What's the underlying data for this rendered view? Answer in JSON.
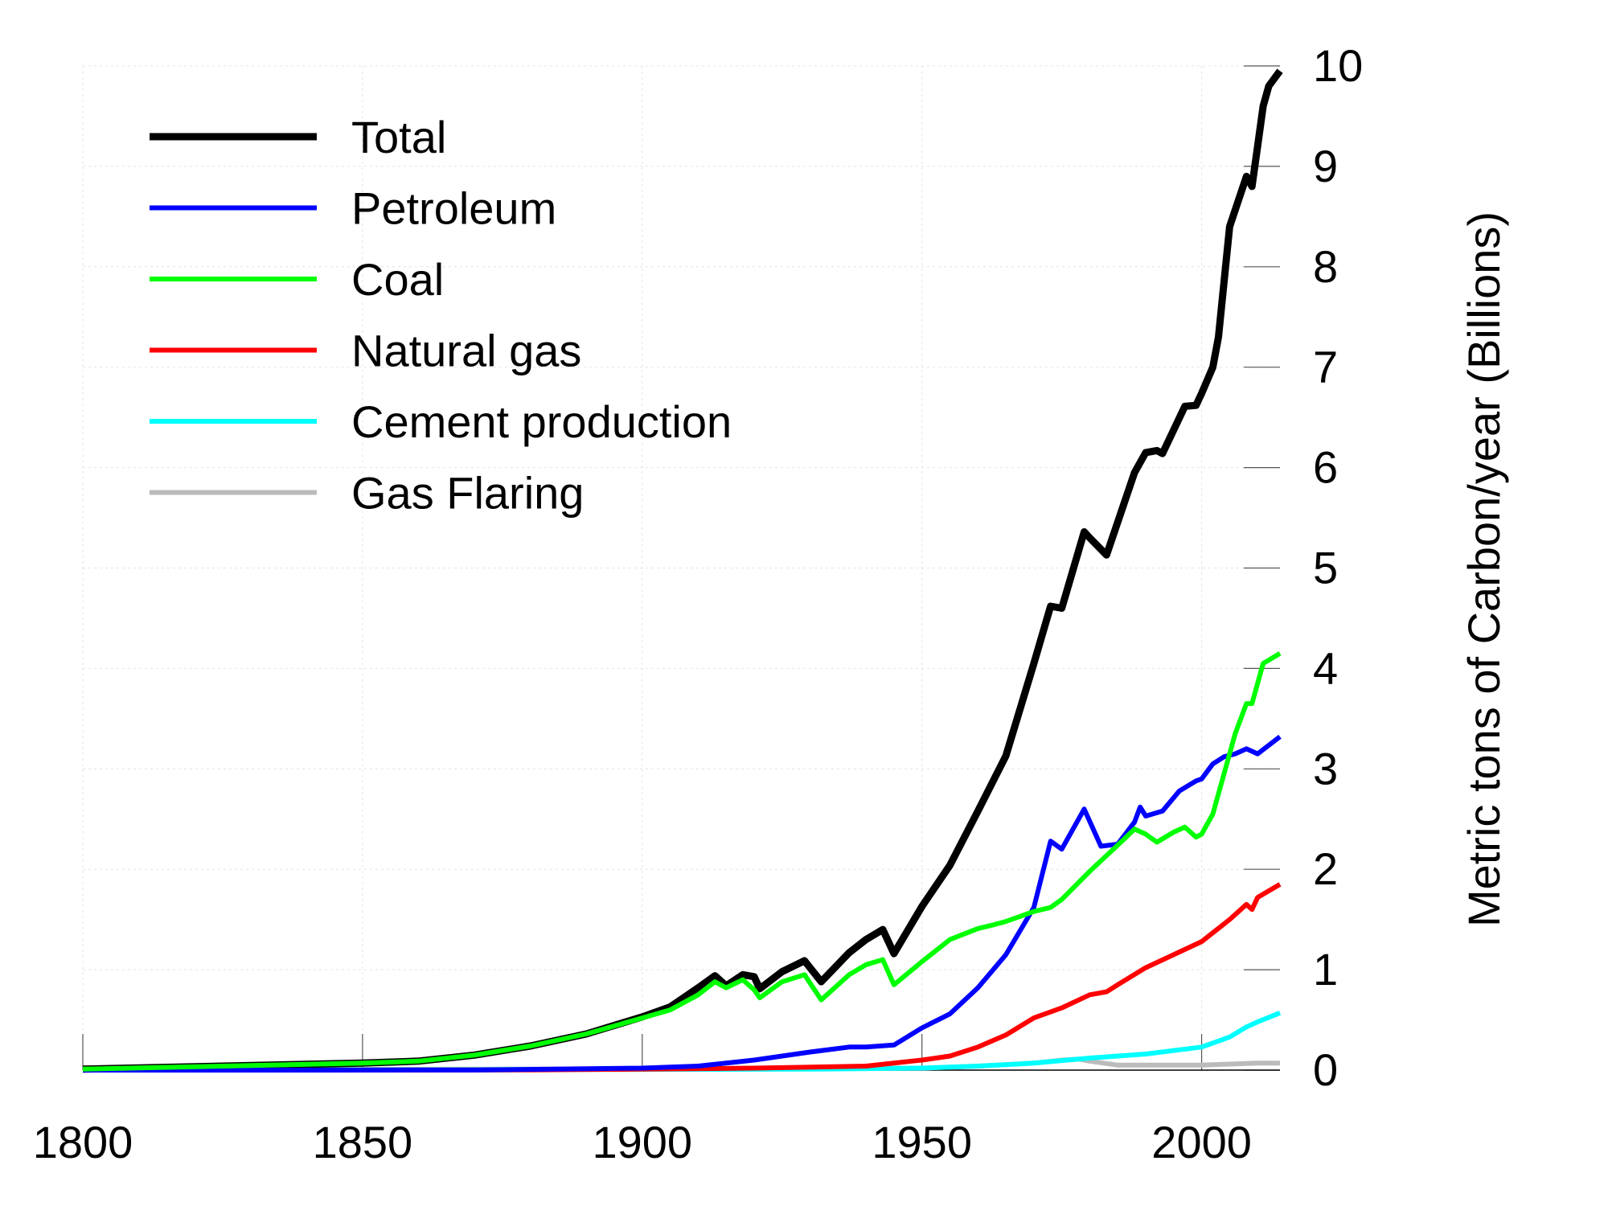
{
  "chart_data": {
    "type": "line",
    "title": "",
    "xlabel": "",
    "ylabel": "Metric tons of Carbon/year (Billions)",
    "xlim": [
      1800,
      2014
    ],
    "ylim": [
      0,
      10
    ],
    "x_ticks": [
      "1800",
      "1850",
      "1900",
      "1950",
      "2000"
    ],
    "y_ticks": [
      "0",
      "1",
      "2",
      "3",
      "4",
      "5",
      "6",
      "7",
      "8",
      "9",
      "10"
    ],
    "y_axis_side": "right",
    "grid": true,
    "legend_position": "top-left",
    "series": [
      {
        "name": "Total",
        "color": "#000000",
        "x": [
          1800,
          1850,
          1860,
          1870,
          1880,
          1890,
          1900,
          1905,
          1910,
          1913,
          1915,
          1918,
          1920,
          1921,
          1925,
          1929,
          1932,
          1937,
          1940,
          1943,
          1945,
          1950,
          1955,
          1960,
          1965,
          1970,
          1973,
          1975,
          1979,
          1980,
          1983,
          1988,
          1990,
          1992,
          1993,
          1997,
          1999,
          2000,
          2002,
          2003,
          2005,
          2008,
          2009,
          2010,
          2011,
          2012,
          2014
        ],
        "y": [
          0.01,
          0.07,
          0.09,
          0.15,
          0.24,
          0.36,
          0.53,
          0.63,
          0.82,
          0.94,
          0.84,
          0.95,
          0.93,
          0.81,
          0.98,
          1.09,
          0.88,
          1.17,
          1.3,
          1.4,
          1.16,
          1.63,
          2.04,
          2.58,
          3.13,
          4.05,
          4.62,
          4.6,
          5.36,
          5.3,
          5.13,
          5.95,
          6.15,
          6.17,
          6.14,
          6.61,
          6.62,
          6.74,
          7.0,
          7.3,
          8.4,
          8.9,
          8.8,
          9.2,
          9.6,
          9.8,
          9.95
        ]
      },
      {
        "name": "Petroleum",
        "color": "#0000ff",
        "x": [
          1800,
          1870,
          1900,
          1910,
          1920,
          1925,
          1930,
          1937,
          1940,
          1945,
          1950,
          1955,
          1960,
          1965,
          1970,
          1973,
          1975,
          1979,
          1982,
          1985,
          1988,
          1989,
          1990,
          1993,
          1996,
          1999,
          2000,
          2002,
          2004,
          2006,
          2008,
          2010,
          2014
        ],
        "y": [
          0,
          0.001,
          0.02,
          0.04,
          0.1,
          0.14,
          0.18,
          0.23,
          0.23,
          0.25,
          0.42,
          0.56,
          0.82,
          1.15,
          1.62,
          2.28,
          2.2,
          2.6,
          2.23,
          2.25,
          2.47,
          2.62,
          2.53,
          2.58,
          2.78,
          2.88,
          2.9,
          3.05,
          3.12,
          3.15,
          3.2,
          3.15,
          3.32
        ]
      },
      {
        "name": "Coal",
        "color": "#00ff00",
        "x": [
          1800,
          1850,
          1860,
          1870,
          1880,
          1890,
          1900,
          1905,
          1910,
          1913,
          1915,
          1918,
          1920,
          1921,
          1925,
          1929,
          1932,
          1937,
          1940,
          1943,
          1945,
          1950,
          1955,
          1960,
          1963,
          1965,
          1970,
          1973,
          1975,
          1980,
          1985,
          1988,
          1990,
          1992,
          1995,
          1997,
          1999,
          2000,
          2002,
          2004,
          2006,
          2008,
          2009,
          2011,
          2014
        ],
        "y": [
          0.01,
          0.07,
          0.09,
          0.15,
          0.24,
          0.36,
          0.52,
          0.6,
          0.75,
          0.88,
          0.82,
          0.9,
          0.8,
          0.72,
          0.88,
          0.95,
          0.7,
          0.95,
          1.05,
          1.1,
          0.85,
          1.08,
          1.3,
          1.41,
          1.45,
          1.48,
          1.58,
          1.62,
          1.7,
          1.98,
          2.24,
          2.4,
          2.35,
          2.27,
          2.37,
          2.42,
          2.32,
          2.35,
          2.55,
          2.95,
          3.35,
          3.65,
          3.65,
          4.05,
          4.15
        ]
      },
      {
        "name": "Natural gas",
        "color": "#ff0000",
        "x": [
          1800,
          1880,
          1900,
          1920,
          1940,
          1950,
          1955,
          1960,
          1965,
          1970,
          1975,
          1980,
          1983,
          1985,
          1990,
          1995,
          2000,
          2005,
          2008,
          2009,
          2010,
          2014
        ],
        "y": [
          0,
          0.002,
          0.01,
          0.02,
          0.04,
          0.1,
          0.14,
          0.23,
          0.35,
          0.52,
          0.62,
          0.75,
          0.78,
          0.85,
          1.02,
          1.15,
          1.28,
          1.5,
          1.65,
          1.6,
          1.72,
          1.85
        ]
      },
      {
        "name": "Cement production",
        "color": "#00ffff",
        "x": [
          1800,
          1930,
          1950,
          1960,
          1970,
          1980,
          1990,
          2000,
          2005,
          2008,
          2010,
          2014
        ],
        "y": [
          0,
          0.01,
          0.02,
          0.04,
          0.07,
          0.12,
          0.16,
          0.23,
          0.33,
          0.43,
          0.48,
          0.57
        ]
      },
      {
        "name": "Gas Flaring",
        "color": "#bbbbbb",
        "x": [
          1800,
          1950,
          1960,
          1970,
          1975,
          1978,
          1980,
          1985,
          1990,
          2000,
          2005,
          2010,
          2014
        ],
        "y": [
          0,
          0.02,
          0.04,
          0.07,
          0.1,
          0.11,
          0.09,
          0.05,
          0.05,
          0.05,
          0.06,
          0.07,
          0.07
        ]
      }
    ]
  }
}
